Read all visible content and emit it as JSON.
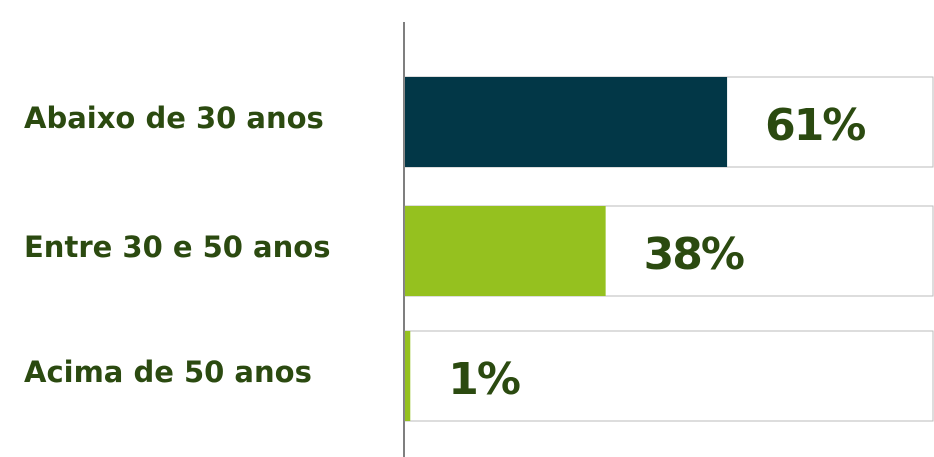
{
  "chart_data": {
    "type": "hbar",
    "categories": [
      "Abaixo de 30 anos",
      "Entre 30 e 50 anos",
      "Acima de 50 anos"
    ],
    "values": [
      61,
      38,
      1
    ],
    "value_labels": [
      "61%",
      "38%",
      "1%"
    ],
    "colors": [
      "#023747",
      "#95c11f",
      "#95c11f"
    ],
    "xlim": [
      0,
      100
    ]
  }
}
